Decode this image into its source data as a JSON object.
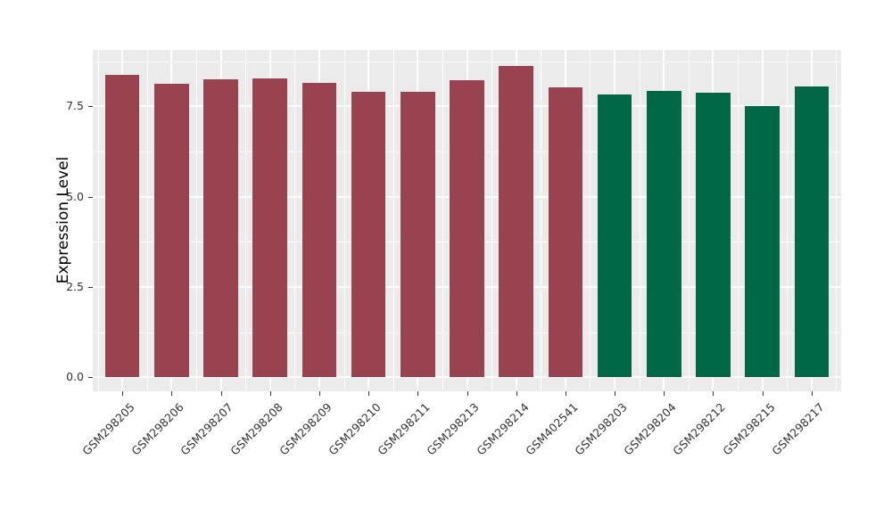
{
  "figure": {
    "background": "#FFFFFF",
    "panel_background": "#EBEBEB",
    "grid_color": "#FFFFFF",
    "axis_text_color": "#333333",
    "axis_title_color": "#000000"
  },
  "chart_data": {
    "type": "bar",
    "title": "",
    "xlabel": "",
    "ylabel": "Expression Level",
    "ylim": [
      0,
      9.07
    ],
    "grid": "major+minor",
    "legend_position": "none",
    "yticks": {
      "values": [
        0,
        2.5,
        5,
        7.5
      ],
      "labels": [
        "0.0",
        "2.5",
        "5.0",
        "7.5"
      ]
    },
    "y_minor_breaks": [
      1.25,
      3.75,
      6.25,
      8.75
    ],
    "bar_colors": {
      "maroon": "#9A4350",
      "green": "#016847"
    },
    "categories": [
      "GSM298205",
      "GSM298206",
      "GSM298207",
      "GSM298208",
      "GSM298209",
      "GSM298210",
      "GSM298211",
      "GSM298213",
      "GSM298214",
      "GSM402541",
      "GSM298203",
      "GSM298204",
      "GSM298212",
      "GSM298215",
      "GSM298217"
    ],
    "values": [
      8.36,
      8.13,
      8.24,
      8.28,
      8.14,
      7.91,
      7.91,
      8.23,
      8.62,
      8.03,
      7.84,
      7.93,
      7.89,
      7.52,
      8.06
    ],
    "bars": [
      {
        "label": "GSM298205",
        "value": 8.36,
        "color": "#9A4350"
      },
      {
        "label": "GSM298206",
        "value": 8.13,
        "color": "#9A4350"
      },
      {
        "label": "GSM298207",
        "value": 8.24,
        "color": "#9A4350"
      },
      {
        "label": "GSM298208",
        "value": 8.28,
        "color": "#9A4350"
      },
      {
        "label": "GSM298209",
        "value": 8.14,
        "color": "#9A4350"
      },
      {
        "label": "GSM298210",
        "value": 7.91,
        "color": "#9A4350"
      },
      {
        "label": "GSM298211",
        "value": 7.91,
        "color": "#9A4350"
      },
      {
        "label": "GSM298213",
        "value": 8.23,
        "color": "#9A4350"
      },
      {
        "label": "GSM298214",
        "value": 8.62,
        "color": "#9A4350"
      },
      {
        "label": "GSM402541",
        "value": 8.03,
        "color": "#9A4350"
      },
      {
        "label": "GSM298203",
        "value": 7.84,
        "color": "#016847"
      },
      {
        "label": "GSM298204",
        "value": 7.93,
        "color": "#016847"
      },
      {
        "label": "GSM298212",
        "value": 7.89,
        "color": "#016847"
      },
      {
        "label": "GSM298215",
        "value": 7.52,
        "color": "#016847"
      },
      {
        "label": "GSM298217",
        "value": 8.06,
        "color": "#016847"
      }
    ]
  }
}
